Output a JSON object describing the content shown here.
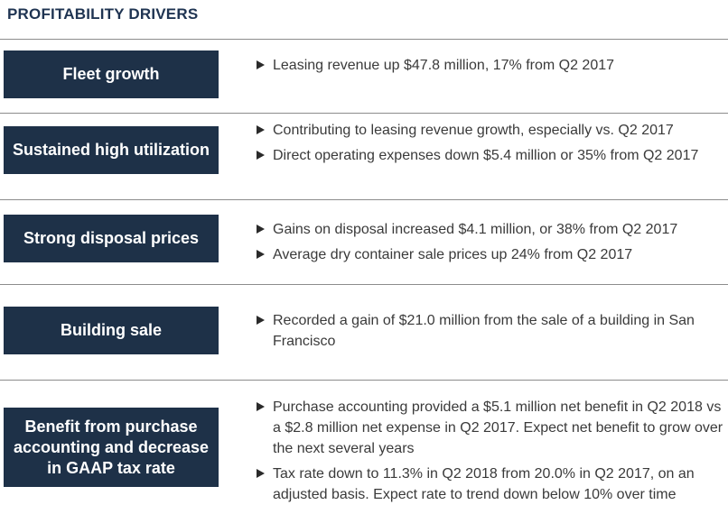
{
  "title": "PROFITABILITY DRIVERS",
  "colors": {
    "label_bg": "#1e3148",
    "title": "#1f3452",
    "rule": "#8c8c8c"
  },
  "rows": [
    {
      "label": "Fleet growth",
      "bullets": [
        "Leasing revenue up $47.8 million, 17% from Q2 2017"
      ]
    },
    {
      "label": "Sustained high utilization",
      "bullets": [
        "Contributing to leasing revenue growth, especially vs. Q2 2017",
        "Direct operating expenses down $5.4 million or 35% from Q2 2017"
      ]
    },
    {
      "label": "Strong disposal prices",
      "bullets": [
        "Gains on disposal increased $4.1 million, or 38% from Q2 2017",
        "Average dry container sale prices up 24% from Q2 2017"
      ]
    },
    {
      "label": "Building sale",
      "bullets": [
        "Recorded a gain of $21.0 million from the sale of a building in San Francisco"
      ]
    },
    {
      "label": "Benefit from purchase accounting and decrease in GAAP tax rate",
      "bullets": [
        "Purchase accounting provided a $5.1 million net benefit in Q2 2018 vs a $2.8 million net expense in Q2 2017.  Expect net benefit to grow over the next several years",
        "Tax rate down to 11.3% in Q2 2018 from 20.0% in Q2 2017, on an adjusted basis.  Expect rate to trend down below 10% over time"
      ]
    }
  ]
}
